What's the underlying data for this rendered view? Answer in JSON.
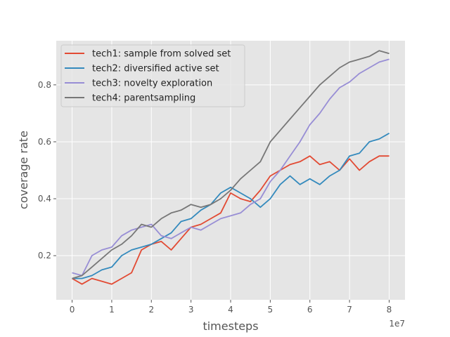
{
  "chart_data": {
    "type": "line",
    "xlabel": "timesteps",
    "ylabel": "coverage rate",
    "x_offset_label": "1e7",
    "xlim": [
      -0.4,
      8.4
    ],
    "ylim": [
      0.045,
      0.955
    ],
    "x_scale_factor": 10000000,
    "xticks": [
      0,
      1,
      2,
      3,
      4,
      5,
      6,
      7,
      8
    ],
    "xtick_labels": [
      "0",
      "1",
      "2",
      "3",
      "4",
      "5",
      "6",
      "7",
      "8"
    ],
    "yticks": [
      0.2,
      0.4,
      0.6,
      0.8
    ],
    "ytick_labels": [
      "0.2",
      "0.4",
      "0.6",
      "0.8"
    ],
    "grid": true,
    "background": "#e5e5e5",
    "legend_position": "upper-left",
    "series": [
      {
        "name": "tech1: sample from solved set",
        "color": "#e24a33",
        "points": [
          [
            0,
            0.12
          ],
          [
            0.25,
            0.1
          ],
          [
            0.5,
            0.12
          ],
          [
            0.75,
            0.11
          ],
          [
            1.0,
            0.1
          ],
          [
            1.25,
            0.12
          ],
          [
            1.5,
            0.14
          ],
          [
            1.75,
            0.22
          ],
          [
            2.0,
            0.24
          ],
          [
            2.25,
            0.25
          ],
          [
            2.5,
            0.22
          ],
          [
            2.75,
            0.26
          ],
          [
            3.0,
            0.3
          ],
          [
            3.25,
            0.31
          ],
          [
            3.5,
            0.33
          ],
          [
            3.75,
            0.35
          ],
          [
            4.0,
            0.42
          ],
          [
            4.25,
            0.4
          ],
          [
            4.5,
            0.39
          ],
          [
            4.75,
            0.43
          ],
          [
            5.0,
            0.48
          ],
          [
            5.25,
            0.5
          ],
          [
            5.5,
            0.52
          ],
          [
            5.75,
            0.53
          ],
          [
            6.0,
            0.55
          ],
          [
            6.25,
            0.52
          ],
          [
            6.5,
            0.53
          ],
          [
            6.75,
            0.5
          ],
          [
            7.0,
            0.54
          ],
          [
            7.25,
            0.5
          ],
          [
            7.5,
            0.53
          ],
          [
            7.75,
            0.55
          ],
          [
            8.0,
            0.55
          ]
        ]
      },
      {
        "name": "tech2: diversified active set",
        "color": "#348abd",
        "points": [
          [
            0,
            0.12
          ],
          [
            0.25,
            0.12
          ],
          [
            0.5,
            0.13
          ],
          [
            0.75,
            0.15
          ],
          [
            1.0,
            0.16
          ],
          [
            1.25,
            0.2
          ],
          [
            1.5,
            0.22
          ],
          [
            1.75,
            0.23
          ],
          [
            2.0,
            0.24
          ],
          [
            2.25,
            0.26
          ],
          [
            2.5,
            0.28
          ],
          [
            2.75,
            0.32
          ],
          [
            3.0,
            0.33
          ],
          [
            3.25,
            0.36
          ],
          [
            3.5,
            0.38
          ],
          [
            3.75,
            0.42
          ],
          [
            4.0,
            0.44
          ],
          [
            4.25,
            0.42
          ],
          [
            4.5,
            0.4
          ],
          [
            4.75,
            0.37
          ],
          [
            5.0,
            0.4
          ],
          [
            5.25,
            0.45
          ],
          [
            5.5,
            0.48
          ],
          [
            5.75,
            0.45
          ],
          [
            6.0,
            0.47
          ],
          [
            6.25,
            0.45
          ],
          [
            6.5,
            0.48
          ],
          [
            6.75,
            0.5
          ],
          [
            7.0,
            0.55
          ],
          [
            7.25,
            0.56
          ],
          [
            7.5,
            0.6
          ],
          [
            7.75,
            0.61
          ],
          [
            8.0,
            0.63
          ]
        ]
      },
      {
        "name": "tech3: novelty exploration",
        "color": "#988ed5",
        "points": [
          [
            0,
            0.14
          ],
          [
            0.25,
            0.13
          ],
          [
            0.5,
            0.2
          ],
          [
            0.75,
            0.22
          ],
          [
            1.0,
            0.23
          ],
          [
            1.25,
            0.27
          ],
          [
            1.5,
            0.29
          ],
          [
            1.75,
            0.3
          ],
          [
            2.0,
            0.31
          ],
          [
            2.25,
            0.27
          ],
          [
            2.5,
            0.26
          ],
          [
            2.75,
            0.28
          ],
          [
            3.0,
            0.3
          ],
          [
            3.25,
            0.29
          ],
          [
            3.5,
            0.31
          ],
          [
            3.75,
            0.33
          ],
          [
            4.0,
            0.34
          ],
          [
            4.25,
            0.35
          ],
          [
            4.5,
            0.38
          ],
          [
            4.75,
            0.4
          ],
          [
            5.0,
            0.46
          ],
          [
            5.25,
            0.5
          ],
          [
            5.5,
            0.55
          ],
          [
            5.75,
            0.6
          ],
          [
            6.0,
            0.66
          ],
          [
            6.25,
            0.7
          ],
          [
            6.5,
            0.75
          ],
          [
            6.75,
            0.79
          ],
          [
            7.0,
            0.81
          ],
          [
            7.25,
            0.84
          ],
          [
            7.5,
            0.86
          ],
          [
            7.75,
            0.88
          ],
          [
            8.0,
            0.89
          ]
        ]
      },
      {
        "name": "tech4: parentsampling",
        "color": "#777777",
        "points": [
          [
            0,
            0.12
          ],
          [
            0.25,
            0.13
          ],
          [
            0.5,
            0.16
          ],
          [
            0.75,
            0.19
          ],
          [
            1.0,
            0.22
          ],
          [
            1.25,
            0.24
          ],
          [
            1.5,
            0.27
          ],
          [
            1.75,
            0.31
          ],
          [
            2.0,
            0.3
          ],
          [
            2.25,
            0.33
          ],
          [
            2.5,
            0.35
          ],
          [
            2.75,
            0.36
          ],
          [
            3.0,
            0.38
          ],
          [
            3.25,
            0.37
          ],
          [
            3.5,
            0.38
          ],
          [
            3.75,
            0.4
          ],
          [
            4.0,
            0.43
          ],
          [
            4.25,
            0.47
          ],
          [
            4.5,
            0.5
          ],
          [
            4.75,
            0.53
          ],
          [
            5.0,
            0.6
          ],
          [
            5.25,
            0.64
          ],
          [
            5.5,
            0.68
          ],
          [
            5.75,
            0.72
          ],
          [
            6.0,
            0.76
          ],
          [
            6.25,
            0.8
          ],
          [
            6.5,
            0.83
          ],
          [
            6.75,
            0.86
          ],
          [
            7.0,
            0.88
          ],
          [
            7.25,
            0.89
          ],
          [
            7.5,
            0.9
          ],
          [
            7.75,
            0.92
          ],
          [
            8.0,
            0.91
          ]
        ]
      }
    ]
  }
}
